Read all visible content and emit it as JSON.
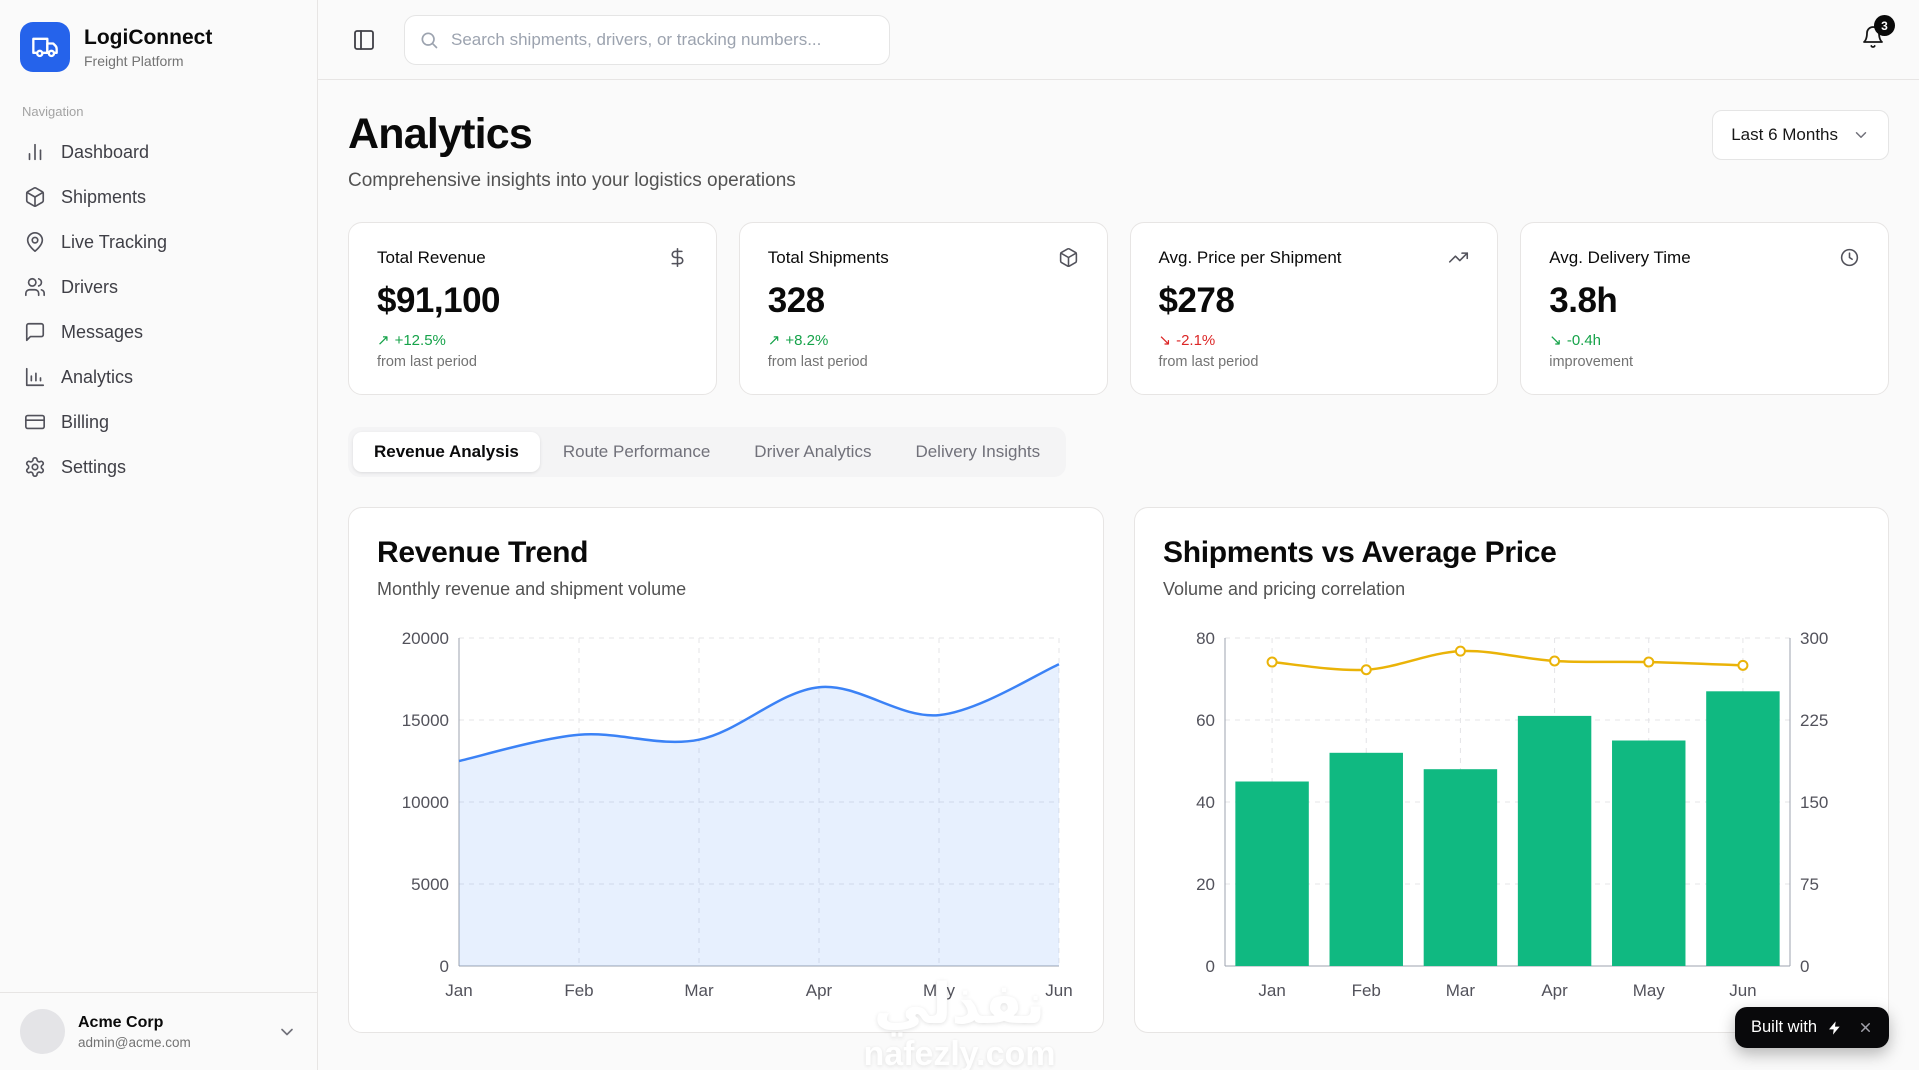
{
  "sidebar": {
    "app_name": "LogiConnect",
    "app_tagline": "Freight Platform",
    "nav_label": "Navigation",
    "items": [
      {
        "label": "Dashboard"
      },
      {
        "label": "Shipments"
      },
      {
        "label": "Live Tracking"
      },
      {
        "label": "Drivers"
      },
      {
        "label": "Messages"
      },
      {
        "label": "Analytics"
      },
      {
        "label": "Billing"
      },
      {
        "label": "Settings"
      }
    ],
    "user": {
      "name": "Acme Corp",
      "email": "admin@acme.com"
    }
  },
  "topbar": {
    "search_placeholder": "Search shipments, drivers, or tracking numbers...",
    "notification_count": "3"
  },
  "page": {
    "title": "Analytics",
    "subtitle": "Comprehensive insights into your logistics operations",
    "range_selector": "Last 6 Months"
  },
  "stats": [
    {
      "label": "Total Revenue",
      "value": "$91,100",
      "arrow": "↗",
      "delta": "+12.5%",
      "caption": "from last period",
      "delta_color": "#16a34a"
    },
    {
      "label": "Total Shipments",
      "value": "328",
      "arrow": "↗",
      "delta": "+8.2%",
      "caption": "from last period",
      "delta_color": "#16a34a"
    },
    {
      "label": "Avg. Price per Shipment",
      "value": "$278",
      "arrow": "↘",
      "delta": "-2.1%",
      "caption": "from last period",
      "delta_color": "#dc2626"
    },
    {
      "label": "Avg. Delivery Time",
      "value": "3.8h",
      "arrow": "↘",
      "delta": "-0.4h",
      "caption": "improvement",
      "delta_color": "#16a34a"
    }
  ],
  "tabs": [
    {
      "label": "Revenue Analysis",
      "active": true
    },
    {
      "label": "Route Performance",
      "active": false
    },
    {
      "label": "Driver Analytics",
      "active": false
    },
    {
      "label": "Delivery Insights",
      "active": false
    }
  ],
  "charts": {
    "revenue": {
      "title": "Revenue Trend",
      "subtitle": "Monthly revenue and shipment volume"
    },
    "combo": {
      "title": "Shipments vs Average Price",
      "subtitle": "Volume and pricing correlation"
    }
  },
  "chart_data": [
    {
      "type": "area",
      "title": "Revenue Trend",
      "x": [
        "Jan",
        "Feb",
        "Mar",
        "Apr",
        "May",
        "Jun"
      ],
      "series": [
        {
          "name": "revenue",
          "values": [
            12500,
            14100,
            13800,
            17000,
            15300,
            18400
          ],
          "color": "#3b82f6"
        }
      ],
      "ylim": [
        0,
        20000
      ],
      "yticks": [
        0,
        5000,
        10000,
        15000,
        20000
      ],
      "grid": true
    },
    {
      "type": "bar+line",
      "title": "Shipments vs Average Price",
      "x": [
        "Jan",
        "Feb",
        "Mar",
        "Apr",
        "May",
        "Jun"
      ],
      "series": [
        {
          "name": "shipments",
          "type": "bar",
          "axis": "left",
          "values": [
            45,
            52,
            48,
            61,
            55,
            67
          ],
          "color": "#10b981"
        },
        {
          "name": "avg_price",
          "type": "line",
          "axis": "right",
          "values": [
            278,
            271,
            288,
            279,
            278,
            275
          ],
          "color": "#eab308"
        }
      ],
      "left_ylim": [
        0,
        80
      ],
      "left_ticks": [
        0,
        20,
        40,
        60,
        80
      ],
      "right_ylim": [
        0,
        300
      ],
      "right_ticks": [
        0,
        75,
        150,
        225,
        300
      ],
      "grid": true
    }
  ],
  "watermark": {
    "line1": "نفذلي",
    "line2": "nafezly.com"
  },
  "built_with": {
    "label": "Built with"
  }
}
